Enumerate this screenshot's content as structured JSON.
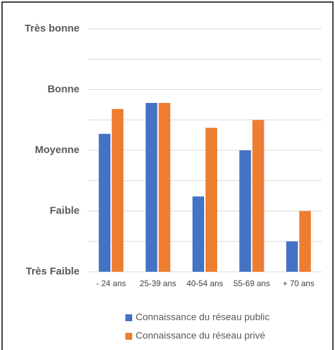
{
  "chart_data": {
    "type": "bar",
    "categories": [
      "- 24 ans",
      "25-39 ans",
      "40-54 ans",
      "55-69 ans",
      "+ 70 ans"
    ],
    "series": [
      {
        "name": "Connaissance du réseau public",
        "color": "#4472c4",
        "values": [
          3.27,
          3.78,
          2.24,
          3.0,
          1.5
        ]
      },
      {
        "name": "Connaissance du réseau privé",
        "color": "#ed7d31",
        "values": [
          3.68,
          3.78,
          3.37,
          3.5,
          2.0
        ]
      }
    ],
    "ylim": [
      1,
      5
    ],
    "yticks": [
      {
        "value": 1,
        "label": "Très Faible"
      },
      {
        "value": 2,
        "label": "Faible"
      },
      {
        "value": 3,
        "label": "Moyenne"
      },
      {
        "value": 4,
        "label": "Bonne"
      },
      {
        "value": 5,
        "label": "Très bonne"
      }
    ],
    "minor_yticks": [
      1.5,
      2.5,
      3.5,
      4.5
    ],
    "grid": true,
    "legend": "bottom"
  }
}
